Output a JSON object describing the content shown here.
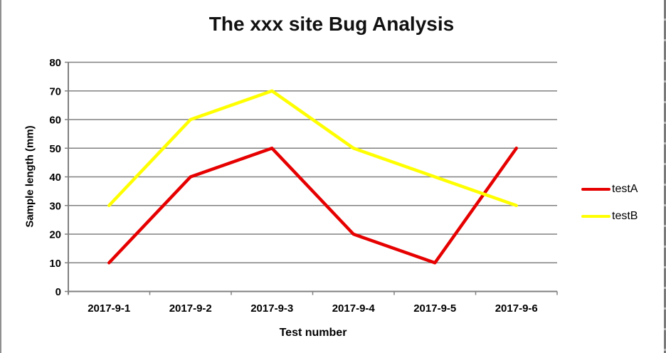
{
  "chart_data": {
    "type": "line",
    "title": "The xxx site Bug Analysis",
    "xlabel": "Test number",
    "ylabel": "Sample length (mm)",
    "categories": [
      "2017-9-1",
      "2017-9-2",
      "2017-9-3",
      "2017-9-4",
      "2017-9-5",
      "2017-9-6"
    ],
    "series": [
      {
        "name": "testA",
        "color": "#e60000",
        "values": [
          10,
          40,
          50,
          20,
          10,
          50
        ]
      },
      {
        "name": "testB",
        "color": "#ffff00",
        "values": [
          30,
          60,
          70,
          50,
          40,
          30
        ]
      }
    ],
    "ylim": [
      0,
      80
    ],
    "yticks": [
      0,
      10,
      20,
      30,
      40,
      50,
      60,
      70,
      80
    ],
    "grid": true,
    "legend_position": "right",
    "colors": {
      "gridline": "#808080",
      "axis": "#808080",
      "tick_text": "#000000",
      "title_text": "#111111"
    }
  }
}
